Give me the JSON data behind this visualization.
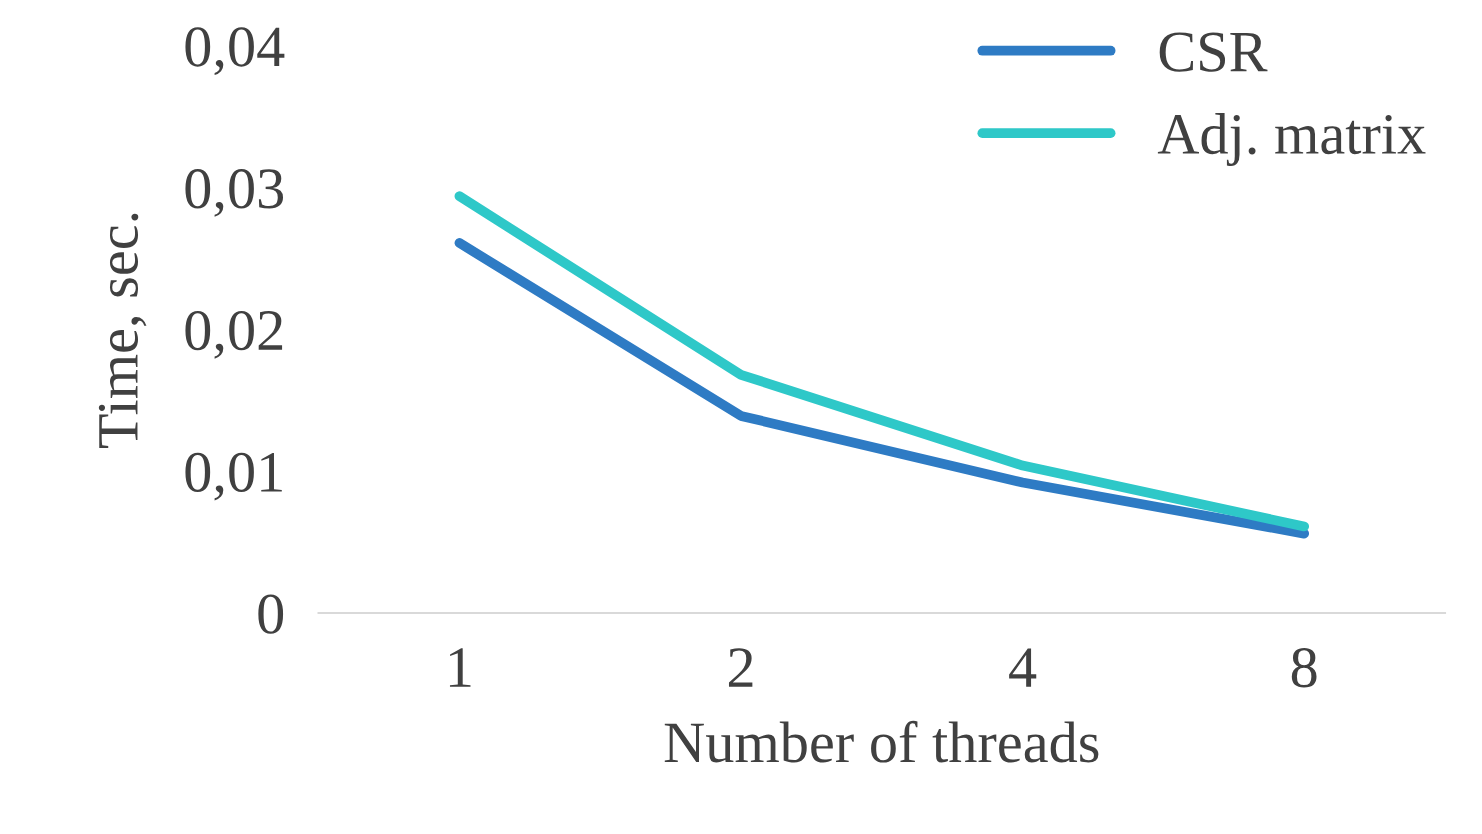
{
  "chart_data": {
    "type": "line",
    "xlabel": "Number of threads",
    "ylabel": "Time, sec.",
    "categories": [
      "1",
      "2",
      "4",
      "8"
    ],
    "series": [
      {
        "name": "CSR",
        "color": "#2e7bc4",
        "values": [
          0.0261,
          0.0139,
          0.0092,
          0.0056
        ]
      },
      {
        "name": "Adj. matrix",
        "color": "#2ec8c8",
        "values": [
          0.0294,
          0.0168,
          0.0104,
          0.0061
        ]
      }
    ],
    "ylim": [
      0,
      0.04
    ],
    "yticks": [
      {
        "value": 0,
        "label": "0"
      },
      {
        "value": 0.01,
        "label": "0,01"
      },
      {
        "value": 0.02,
        "label": "0,02"
      },
      {
        "value": 0.03,
        "label": "0,03"
      },
      {
        "value": 0.04,
        "label": "0,04"
      }
    ],
    "grid": false,
    "legend": "top right",
    "marker": "none",
    "line_style": "solid"
  }
}
